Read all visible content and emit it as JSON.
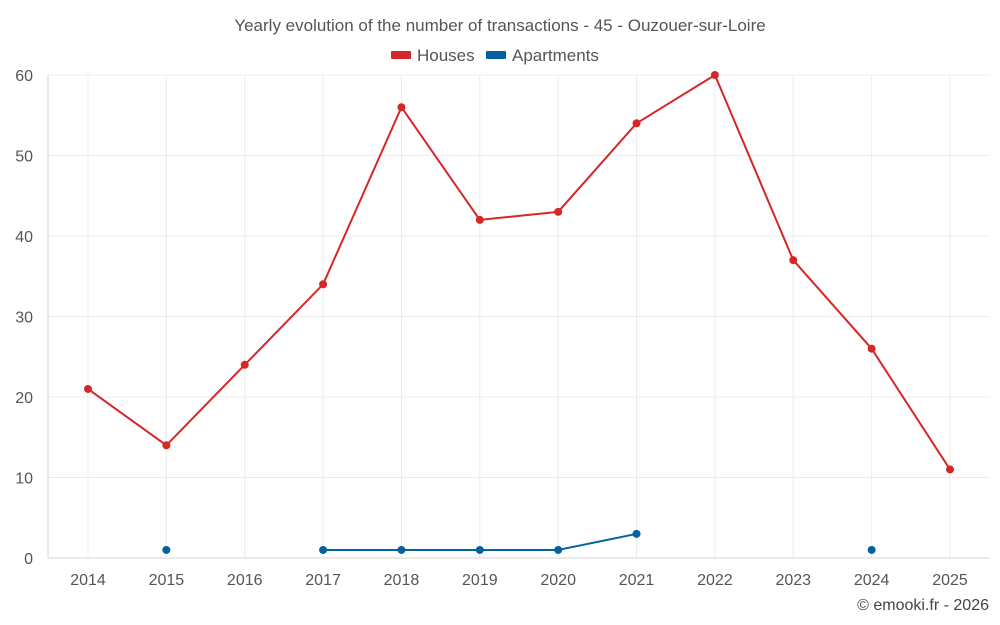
{
  "chart_data": {
    "type": "line",
    "title": "Yearly evolution of the number of transactions - 45 - Ouzouer-sur-Loire",
    "xlabel": "",
    "ylabel": "",
    "categories": [
      "2014",
      "2015",
      "2016",
      "2017",
      "2018",
      "2019",
      "2020",
      "2021",
      "2022",
      "2023",
      "2024",
      "2025"
    ],
    "ylim": [
      0,
      60
    ],
    "yticks": [
      "0",
      "10",
      "20",
      "30",
      "40",
      "50",
      "60"
    ],
    "grid": true,
    "legend_position": "top-center",
    "series": [
      {
        "name": "Houses",
        "color": "#d62728",
        "values": [
          21,
          14,
          24,
          34,
          56,
          42,
          43,
          54,
          60,
          37,
          26,
          11
        ]
      },
      {
        "name": "Apartments",
        "color": "#00639e",
        "values": [
          null,
          1,
          null,
          1,
          1,
          1,
          1,
          3,
          null,
          null,
          1,
          null
        ]
      }
    ]
  },
  "credit": "© emooki.fr - 2026"
}
